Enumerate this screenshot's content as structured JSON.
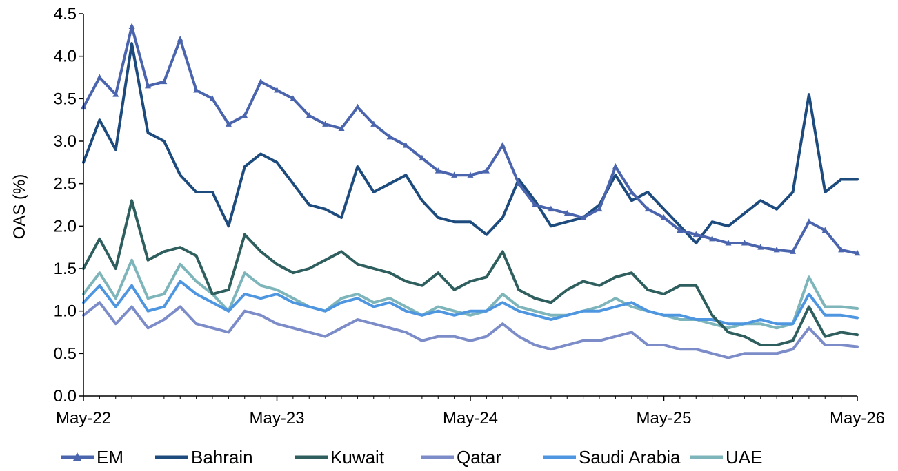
{
  "chart_data": {
    "type": "line",
    "title": "",
    "xlabel": "",
    "ylabel": "OAS (%)",
    "ylim": [
      0,
      4.5
    ],
    "yticks": [
      "0.0",
      "0.5",
      "1.0",
      "1.5",
      "2.0",
      "2.5",
      "3.0",
      "3.5",
      "4.0",
      "4.5"
    ],
    "xlim": [
      "2022-05",
      "2026-05"
    ],
    "xticks": [
      {
        "date": "2022-05",
        "label": "May-22"
      },
      {
        "date": "2023-05",
        "label": "May-23"
      },
      {
        "date": "2024-05",
        "label": "May-24"
      },
      {
        "date": "2025-05",
        "label": "May-25"
      },
      {
        "date": "2026-05",
        "label": "May-26"
      }
    ],
    "grid": false,
    "legend_position": "bottom",
    "series": [
      {
        "name": "EM",
        "color": "#4A64AD",
        "marker": "triangle",
        "x": [
          "2022-05",
          "2022-06",
          "2022-07",
          "2022-08",
          "2022-09",
          "2022-10",
          "2022-11",
          "2022-12",
          "2023-01",
          "2023-02",
          "2023-03",
          "2023-04",
          "2023-05",
          "2023-06",
          "2023-07",
          "2023-08",
          "2023-09",
          "2023-10",
          "2023-11",
          "2023-12",
          "2024-01",
          "2024-02",
          "2024-03",
          "2024-04",
          "2024-05",
          "2024-06",
          "2024-07",
          "2024-08",
          "2024-09",
          "2024-10",
          "2024-11",
          "2024-12",
          "2025-01",
          "2025-02",
          "2025-03",
          "2025-04",
          "2025-05",
          "2025-06",
          "2025-07",
          "2025-08",
          "2025-09",
          "2025-10",
          "2025-11",
          "2025-12",
          "2026-01",
          "2026-02",
          "2026-03",
          "2026-04",
          "2026-05"
        ],
        "y": [
          3.4,
          3.75,
          3.55,
          4.35,
          3.65,
          3.7,
          4.2,
          3.6,
          3.5,
          3.2,
          3.3,
          3.7,
          3.6,
          3.5,
          3.3,
          3.2,
          3.15,
          3.4,
          3.2,
          3.05,
          2.95,
          2.8,
          2.65,
          2.6,
          2.6,
          2.65,
          2.95,
          2.5,
          2.25,
          2.2,
          2.15,
          2.1,
          2.2,
          2.7,
          2.4,
          2.2,
          2.1,
          1.95,
          1.9,
          1.85,
          1.8,
          1.8,
          1.75,
          1.72,
          1.7,
          2.05,
          1.95,
          1.72,
          1.68
        ]
      },
      {
        "name": "Bahrain",
        "color": "#1D4B7E",
        "marker": "none",
        "x": [
          "2022-05",
          "2022-06",
          "2022-07",
          "2022-08",
          "2022-09",
          "2022-10",
          "2022-11",
          "2022-12",
          "2023-01",
          "2023-02",
          "2023-03",
          "2023-04",
          "2023-05",
          "2023-06",
          "2023-07",
          "2023-08",
          "2023-09",
          "2023-10",
          "2023-11",
          "2023-12",
          "2024-01",
          "2024-02",
          "2024-03",
          "2024-04",
          "2024-05",
          "2024-06",
          "2024-07",
          "2024-08",
          "2024-09",
          "2024-10",
          "2024-11",
          "2024-12",
          "2025-01",
          "2025-02",
          "2025-03",
          "2025-04",
          "2025-05",
          "2025-06",
          "2025-07",
          "2025-08",
          "2025-09",
          "2025-10",
          "2025-11",
          "2025-12",
          "2026-01",
          "2026-02",
          "2026-03",
          "2026-04",
          "2026-05"
        ],
        "y": [
          2.75,
          3.25,
          2.9,
          4.15,
          3.1,
          3.0,
          2.6,
          2.4,
          2.4,
          2.0,
          2.7,
          2.85,
          2.75,
          2.5,
          2.25,
          2.2,
          2.1,
          2.7,
          2.4,
          2.5,
          2.6,
          2.3,
          2.1,
          2.05,
          2.05,
          1.9,
          2.1,
          2.55,
          2.3,
          2.0,
          2.05,
          2.1,
          2.25,
          2.6,
          2.3,
          2.4,
          2.2,
          2.0,
          1.8,
          2.05,
          2.0,
          2.15,
          2.3,
          2.2,
          2.4,
          3.55,
          2.4,
          2.55,
          2.55
        ]
      },
      {
        "name": "Kuwait",
        "color": "#2E5F5E",
        "marker": "none",
        "x": [
          "2022-05",
          "2022-06",
          "2022-07",
          "2022-08",
          "2022-09",
          "2022-10",
          "2022-11",
          "2022-12",
          "2023-01",
          "2023-02",
          "2023-03",
          "2023-04",
          "2023-05",
          "2023-06",
          "2023-07",
          "2023-08",
          "2023-09",
          "2023-10",
          "2023-11",
          "2023-12",
          "2024-01",
          "2024-02",
          "2024-03",
          "2024-04",
          "2024-05",
          "2024-06",
          "2024-07",
          "2024-08",
          "2024-09",
          "2024-10",
          "2024-11",
          "2024-12",
          "2025-01",
          "2025-02",
          "2025-03",
          "2025-04",
          "2025-05",
          "2025-06",
          "2025-07",
          "2025-08",
          "2025-09",
          "2025-10",
          "2025-11",
          "2025-12",
          "2026-01",
          "2026-02",
          "2026-03",
          "2026-04",
          "2026-05"
        ],
        "y": [
          1.5,
          1.85,
          1.5,
          2.3,
          1.6,
          1.7,
          1.75,
          1.65,
          1.2,
          1.25,
          1.9,
          1.7,
          1.55,
          1.45,
          1.5,
          1.6,
          1.7,
          1.55,
          1.5,
          1.45,
          1.35,
          1.3,
          1.45,
          1.25,
          1.35,
          1.4,
          1.7,
          1.25,
          1.15,
          1.1,
          1.25,
          1.35,
          1.3,
          1.4,
          1.45,
          1.25,
          1.2,
          1.3,
          1.3,
          0.95,
          0.75,
          0.7,
          0.6,
          0.6,
          0.65,
          1.05,
          0.7,
          0.75,
          0.72
        ]
      },
      {
        "name": "Qatar",
        "color": "#7C8CC8",
        "marker": "none",
        "x": [
          "2022-05",
          "2022-06",
          "2022-07",
          "2022-08",
          "2022-09",
          "2022-10",
          "2022-11",
          "2022-12",
          "2023-01",
          "2023-02",
          "2023-03",
          "2023-04",
          "2023-05",
          "2023-06",
          "2023-07",
          "2023-08",
          "2023-09",
          "2023-10",
          "2023-11",
          "2023-12",
          "2024-01",
          "2024-02",
          "2024-03",
          "2024-04",
          "2024-05",
          "2024-06",
          "2024-07",
          "2024-08",
          "2024-09",
          "2024-10",
          "2024-11",
          "2024-12",
          "2025-01",
          "2025-02",
          "2025-03",
          "2025-04",
          "2025-05",
          "2025-06",
          "2025-07",
          "2025-08",
          "2025-09",
          "2025-10",
          "2025-11",
          "2025-12",
          "2026-01",
          "2026-02",
          "2026-03",
          "2026-04",
          "2026-05"
        ],
        "y": [
          0.95,
          1.1,
          0.85,
          1.05,
          0.8,
          0.9,
          1.05,
          0.85,
          0.8,
          0.75,
          1.0,
          0.95,
          0.85,
          0.8,
          0.75,
          0.7,
          0.8,
          0.9,
          0.85,
          0.8,
          0.75,
          0.65,
          0.7,
          0.7,
          0.65,
          0.7,
          0.85,
          0.7,
          0.6,
          0.55,
          0.6,
          0.65,
          0.65,
          0.7,
          0.75,
          0.6,
          0.6,
          0.55,
          0.55,
          0.5,
          0.45,
          0.5,
          0.5,
          0.5,
          0.55,
          0.8,
          0.6,
          0.6,
          0.58
        ]
      },
      {
        "name": "Saudi Arabia",
        "color": "#4F96E0",
        "marker": "none",
        "x": [
          "2022-05",
          "2022-06",
          "2022-07",
          "2022-08",
          "2022-09",
          "2022-10",
          "2022-11",
          "2022-12",
          "2023-01",
          "2023-02",
          "2023-03",
          "2023-04",
          "2023-05",
          "2023-06",
          "2023-07",
          "2023-08",
          "2023-09",
          "2023-10",
          "2023-11",
          "2023-12",
          "2024-01",
          "2024-02",
          "2024-03",
          "2024-04",
          "2024-05",
          "2024-06",
          "2024-07",
          "2024-08",
          "2024-09",
          "2024-10",
          "2024-11",
          "2024-12",
          "2025-01",
          "2025-02",
          "2025-03",
          "2025-04",
          "2025-05",
          "2025-06",
          "2025-07",
          "2025-08",
          "2025-09",
          "2025-10",
          "2025-11",
          "2025-12",
          "2026-01",
          "2026-02",
          "2026-03",
          "2026-04",
          "2026-05"
        ],
        "y": [
          1.1,
          1.3,
          1.05,
          1.3,
          1.0,
          1.05,
          1.35,
          1.2,
          1.1,
          1.0,
          1.2,
          1.15,
          1.2,
          1.1,
          1.05,
          1.0,
          1.1,
          1.15,
          1.05,
          1.1,
          1.0,
          0.95,
          1.0,
          0.95,
          1.0,
          1.0,
          1.1,
          1.0,
          0.95,
          0.9,
          0.95,
          1.0,
          1.0,
          1.05,
          1.1,
          1.0,
          0.95,
          0.95,
          0.9,
          0.9,
          0.85,
          0.85,
          0.9,
          0.85,
          0.85,
          1.2,
          0.95,
          0.95,
          0.92
        ]
      },
      {
        "name": "UAE",
        "color": "#7DB5BA",
        "marker": "none",
        "x": [
          "2022-05",
          "2022-06",
          "2022-07",
          "2022-08",
          "2022-09",
          "2022-10",
          "2022-11",
          "2022-12",
          "2023-01",
          "2023-02",
          "2023-03",
          "2023-04",
          "2023-05",
          "2023-06",
          "2023-07",
          "2023-08",
          "2023-09",
          "2023-10",
          "2023-11",
          "2023-12",
          "2024-01",
          "2024-02",
          "2024-03",
          "2024-04",
          "2024-05",
          "2024-06",
          "2024-07",
          "2024-08",
          "2024-09",
          "2024-10",
          "2024-11",
          "2024-12",
          "2025-01",
          "2025-02",
          "2025-03",
          "2025-04",
          "2025-05",
          "2025-06",
          "2025-07",
          "2025-08",
          "2025-09",
          "2025-10",
          "2025-11",
          "2025-12",
          "2026-01",
          "2026-02",
          "2026-03",
          "2026-04",
          "2026-05"
        ],
        "y": [
          1.2,
          1.45,
          1.15,
          1.6,
          1.15,
          1.2,
          1.55,
          1.35,
          1.2,
          1.0,
          1.45,
          1.3,
          1.25,
          1.15,
          1.05,
          1.0,
          1.15,
          1.2,
          1.1,
          1.15,
          1.05,
          0.95,
          1.05,
          1.0,
          0.95,
          1.0,
          1.2,
          1.05,
          1.0,
          0.95,
          0.95,
          1.0,
          1.05,
          1.15,
          1.05,
          1.0,
          0.95,
          0.9,
          0.9,
          0.85,
          0.8,
          0.85,
          0.85,
          0.8,
          0.85,
          1.4,
          1.05,
          1.05,
          1.03
        ]
      }
    ]
  }
}
